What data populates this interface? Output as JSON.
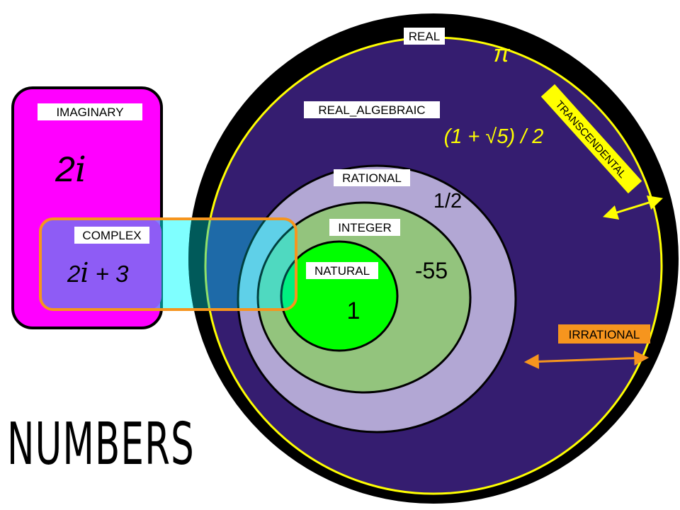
{
  "title": "NUMBERS",
  "sets": {
    "real": "REAL",
    "real_algebraic": "REAL_ALGEBRAIC",
    "rational": "RATIONAL",
    "integer": "INTEGER",
    "natural": "NATURAL",
    "imaginary": "IMAGINARY",
    "complex": "COMPLEX",
    "transcendental": "TRANSCENDENTAL",
    "irrational": "IRRATIONAL"
  },
  "examples": {
    "pi": "π",
    "golden_ratio": "(1 + √5) / 2",
    "half": "1/2",
    "negative": "-55",
    "one": "1",
    "imaginary_coef": "2",
    "imaginary_unit": "i",
    "complex_coef": "2",
    "complex_unit": "i",
    "complex_rest": " + 3"
  },
  "colors": {
    "real": "#000000",
    "real_algebraic": "#351d70",
    "rational": "#b2a7d4",
    "integer": "#93c47d",
    "natural": "#00ff00",
    "imaginary": "#ff00ff",
    "complex_overlay": "#00ffff",
    "complex_border": "#f6951e",
    "algebraic_border": "#ffff00",
    "transcendental_tag": "#ffff00",
    "irrational_tag": "#f6951e"
  }
}
